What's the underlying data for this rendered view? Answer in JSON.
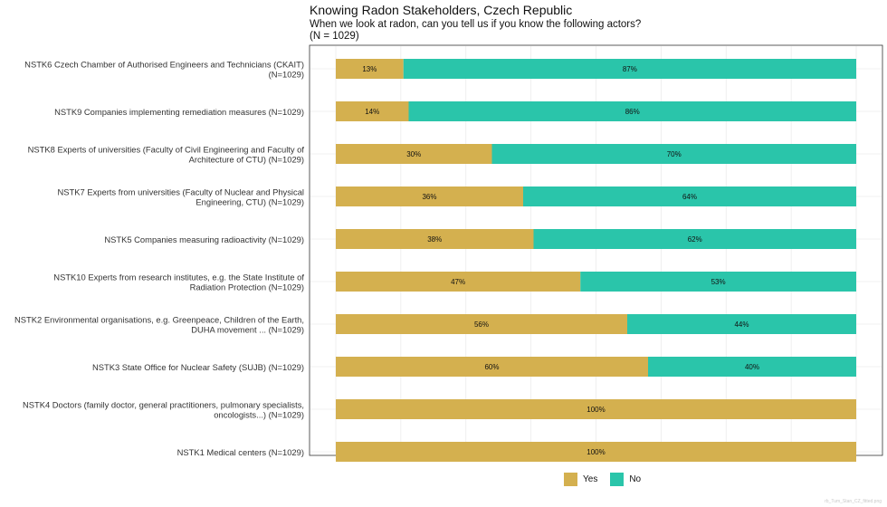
{
  "chart_data": {
    "type": "bar",
    "orientation": "horizontal",
    "stacked": true,
    "title": "Knowing Radon Stakeholders, Czech Republic",
    "subtitle_line1": "When we look at radon, can you tell us if you know the following actors?",
    "subtitle_line2": "(N = 1029)",
    "xlim": [
      0,
      100
    ],
    "grid": true,
    "legend_position": "bottom",
    "categories": [
      [
        "NSTK6 Czech Chamber of Authorised Engineers and Technicians (CKAIT)",
        "(N=1029)"
      ],
      [
        "NSTK9 Companies implementing remediation measures  (N=1029)"
      ],
      [
        "NSTK8 Experts of universities (Faculty of Civil Engineering and Faculty of",
        "Architecture of CTU)  (N=1029)"
      ],
      [
        "NSTK7 Experts from universities (Faculty of Nuclear and Physical",
        "Engineering, CTU) (N=1029)"
      ],
      [
        "NSTK5 Companies measuring radioactivity (N=1029)"
      ],
      [
        "NSTK10 Experts from research institutes, e.g. the State Institute of",
        "Radiation Protection (N=1029)"
      ],
      [
        "NSTK2 Environmental organisations, e.g. Greenpeace, Children of the Earth,",
        "DUHA movement ...  (N=1029)"
      ],
      [
        "NSTK3 State Office for Nuclear Safety (SUJB)  (N=1029)"
      ],
      [
        "NSTK4 Doctors (family doctor, general practitioners, pulmonary specialists,",
        "oncologists...) (N=1029)"
      ],
      [
        "NSTK1 Medical centers (N=1029)"
      ]
    ],
    "series": [
      {
        "name": "Yes",
        "color": "#d4b04f",
        "values": [
          13,
          14,
          30,
          36,
          38,
          47,
          56,
          60,
          100,
          100
        ]
      },
      {
        "name": "No",
        "color": "#2ac5aa",
        "values": [
          87,
          86,
          70,
          64,
          62,
          53,
          44,
          40,
          0,
          0
        ]
      }
    ]
  },
  "watermark": "rb_Tum_Stan_CZ_fitted.png"
}
